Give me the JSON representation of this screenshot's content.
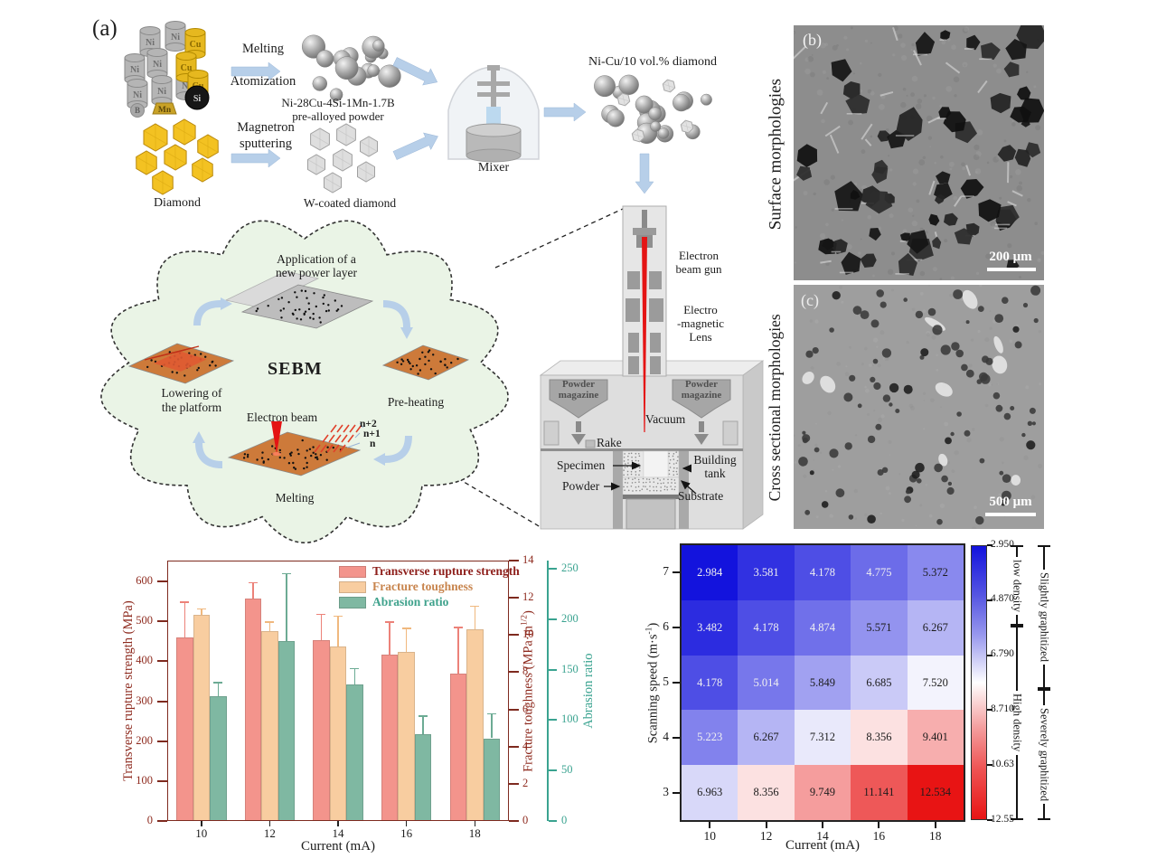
{
  "figure": {
    "label_a": "(a)"
  },
  "panel_a": {
    "materials": {
      "ni": "Ni",
      "cu": "Cu",
      "b": "B",
      "mn": "Mn",
      "si": "Si"
    },
    "labels": {
      "melting": "Melting",
      "atomization": "Atomization",
      "prealloy_line1": "Ni-28Cu-4Si-1Mn-1.7B",
      "prealloy_line2": "pre-alloyed powder",
      "magnetron_line1": "Magnetron",
      "magnetron_line2": "sputtering",
      "diamond": "Diamond",
      "w_coated": "W-coated diamond",
      "mixer": "Mixer",
      "mixture": "Ni-Cu/10 vol.% diamond"
    },
    "sebm": {
      "title": "SEBM",
      "apply_line1": "Application of a",
      "apply_line2": "new power layer",
      "preheating": "Pre-heating",
      "lowering_line1": "Lowering of",
      "lowering_line2": "the platform",
      "electron_beam": "Electron beam",
      "melting": "Melting",
      "layer_n2": "n+2",
      "layer_n1": "n+1",
      "layer_n": "n"
    },
    "machine": {
      "gun_line1": "Electron",
      "gun_line2": "beam gun",
      "lens_line1": "Electro",
      "lens_line2": "-magnetic",
      "lens_line3": "Lens",
      "magazine_line1": "Powder",
      "magazine_line2": "magazine",
      "vacuum": "Vacuum",
      "rake": "Rake",
      "specimen": "Specimen",
      "tank_line1": "Building",
      "tank_line2": "tank",
      "powder": "Powder",
      "substrate": "Substrate"
    }
  },
  "panel_b": {
    "label": "(b)",
    "title": "Surface morphologies",
    "scale_bar": "200 μm"
  },
  "panel_c": {
    "label": "(c)",
    "title": "Cross sectional morphologies",
    "scale_bar": "500 μm"
  },
  "chart_data": [
    {
      "type": "bar",
      "xlabel": "Current (mA)",
      "categories": [
        "10",
        "12",
        "14",
        "16",
        "18"
      ],
      "axes": {
        "left": {
          "label": "Transverse rupture strength (MPa)",
          "ticks": [
            0,
            100,
            200,
            300,
            400,
            500,
            600
          ],
          "max": 652,
          "color": "#8e2a1e"
        },
        "right_inner": {
          "label_pre": "Fracture toughness (MPa·m",
          "label_sup": "1/2",
          "label_post": ")",
          "ticks": [
            0,
            2,
            4,
            6,
            8,
            10,
            12,
            14
          ],
          "max": 14,
          "color": "#8e2a1e"
        },
        "right_outer": {
          "label": "Abrasion ratio",
          "ticks": [
            0,
            50,
            100,
            150,
            200,
            250
          ],
          "max": 258,
          "color": "#3aa390"
        }
      },
      "series": [
        {
          "name": "Transverse rupture strength",
          "axis": "left",
          "color": "#f3948c",
          "err_color": "#ec8279",
          "values": [
            460,
            557,
            452,
            416,
            370
          ],
          "errors_plus": [
            88,
            40,
            65,
            82,
            115
          ]
        },
        {
          "name": "Fracture toughness",
          "axis": "right_inner",
          "color": "#f8cda0",
          "err_color": "#f0b87e",
          "values": [
            11.1,
            10.2,
            9.4,
            9.1,
            10.3
          ],
          "errors_plus": [
            0.3,
            0.5,
            1.6,
            1.25,
            1.25
          ]
        },
        {
          "name": "Abrasion ratio",
          "axis": "right_outer",
          "color": "#7fb8a2",
          "err_color": "#6cab94",
          "values": [
            124,
            178,
            135,
            86,
            82
          ],
          "errors_plus": [
            13,
            67,
            16,
            18,
            24
          ]
        }
      ],
      "legend_text_colors": [
        "#8e1f1b",
        "#c8854e",
        "#3fa28c"
      ]
    },
    {
      "type": "heatmap",
      "xlabel": "Current (mA)",
      "ylabel_pre": "Scanning speed (m·s",
      "ylabel_sup": "-1",
      "ylabel_post": ")",
      "x_ticks": [
        "10",
        "12",
        "14",
        "16",
        "18"
      ],
      "y_ticks": [
        "7",
        "6",
        "5",
        "4",
        "3"
      ],
      "values": [
        [
          2.984,
          3.581,
          4.178,
          4.775,
          5.372
        ],
        [
          3.482,
          4.178,
          4.874,
          5.571,
          6.267
        ],
        [
          4.178,
          5.014,
          5.849,
          6.685,
          7.52
        ],
        [
          5.223,
          6.267,
          7.312,
          8.356,
          9.401
        ],
        [
          6.963,
          8.356,
          9.749,
          11.141,
          12.534
        ]
      ],
      "value_labels": [
        [
          "2.984",
          "3.581",
          "4.178",
          "4.775",
          "5.372"
        ],
        [
          "3.482",
          "4.178",
          "4.874",
          "5.571",
          "6.267"
        ],
        [
          "4.178",
          "5.014",
          "5.849",
          "6.685",
          "7.520"
        ],
        [
          "5.223",
          "6.267",
          "7.312",
          "8.356",
          "9.401"
        ],
        [
          "6.963",
          "8.356",
          "9.749",
          "11.141",
          "12.534"
        ]
      ],
      "colorbar": {
        "min": 2.95,
        "max": 12.55,
        "tick_labels": [
          "2.950",
          "4.870",
          "6.790",
          "8.710",
          "10.63",
          "12.55"
        ]
      },
      "annotations": {
        "low_density": "low density",
        "high_density": "High density",
        "slightly": "Slightly graphitized",
        "severely": "Severely graphitized"
      }
    }
  ]
}
